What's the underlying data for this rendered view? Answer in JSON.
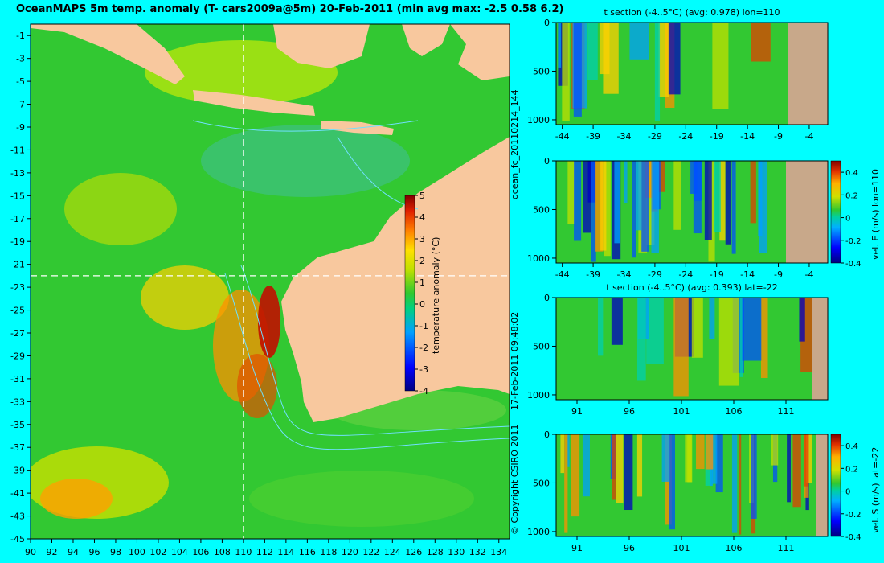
{
  "header": {
    "title": "OceanMAPS 5m temp. anomaly (T- cars2009a@5m) 20-Feb-2011 (min avg max: -2.5 0.58 6.2)"
  },
  "side_labels": {
    "run_id": "ocean_fc_20110214_144",
    "timestamp": "17-Feb-2011 09:48:02",
    "copyright": "© Copyright CSIRO 2011"
  },
  "colors": {
    "background": "#00ffff",
    "land": "#f8c89e",
    "section_land": "#c8a88a",
    "ocean_base": "#32c832",
    "contour": "#70e0ff"
  },
  "chart_data": [
    {
      "id": "map",
      "type": "heatmap",
      "title": "OceanMAPS 5m temp. anomaly (T- cars2009a@5m) 20-Feb-2011 (min avg max: -2.5 0.58 6.2)",
      "xlabel": "",
      "ylabel": "",
      "xlim": [
        90,
        135
      ],
      "ylim": [
        -45,
        0
      ],
      "xticks": [
        90,
        92,
        94,
        96,
        98,
        100,
        102,
        104,
        106,
        108,
        110,
        112,
        114,
        116,
        118,
        120,
        122,
        124,
        126,
        128,
        130,
        132,
        134
      ],
      "yticks": [
        -1,
        -3,
        -5,
        -7,
        -9,
        -11,
        -13,
        -15,
        -17,
        -19,
        -21,
        -23,
        -25,
        -27,
        -29,
        -31,
        -33,
        -35,
        -37,
        -39,
        -41,
        -43,
        -45
      ],
      "crosshair": {
        "lon": 110,
        "lat": -22
      },
      "colorbar": {
        "label": "temperature anomaly (°C)",
        "min": -4,
        "max": 5,
        "ticks": [
          5,
          4,
          3,
          2,
          1,
          0,
          -1,
          -2,
          -3,
          -4
        ]
      }
    },
    {
      "id": "section1",
      "type": "heatmap",
      "title": "t section (-4..5°C) (avg: 0.978) lon=110",
      "xlim": [
        -45,
        -1
      ],
      "ylim": [
        1050,
        0
      ],
      "xticks": [
        -44,
        -39,
        -34,
        -29,
        -24,
        -19,
        -14,
        -9,
        -4
      ],
      "yticks": [
        0,
        500,
        1000
      ]
    },
    {
      "id": "section2",
      "type": "heatmap",
      "title": "",
      "xlim": [
        -45,
        -1
      ],
      "ylim": [
        1050,
        0
      ],
      "xticks": [
        -44,
        -39,
        -34,
        -29,
        -24,
        -19,
        -14,
        -9,
        -4
      ],
      "yticks": [
        0,
        500,
        1000
      ],
      "colorbar": {
        "label": "vel. E (m/s) lon=110",
        "min": -0.4,
        "max": 0.5,
        "ticks": [
          "0.4",
          "0.2",
          "0",
          "-0.2",
          "-0.4"
        ]
      }
    },
    {
      "id": "section3",
      "type": "heatmap",
      "title": "t section (-4..5°C) (avg: 0.393) lat=-22",
      "xlim": [
        89,
        115
      ],
      "ylim": [
        1050,
        0
      ],
      "xticks": [
        91,
        96,
        101,
        106,
        111
      ],
      "yticks": [
        0,
        500,
        1000
      ]
    },
    {
      "id": "section4",
      "type": "heatmap",
      "title": "",
      "xlim": [
        89,
        115
      ],
      "ylim": [
        1050,
        0
      ],
      "xticks": [
        91,
        96,
        101,
        106,
        111
      ],
      "yticks": [
        0,
        500,
        1000
      ],
      "colorbar": {
        "label": "vel. S (m/s) lat=-22",
        "min": -0.4,
        "max": 0.5,
        "ticks": [
          "0.4",
          "0.2",
          "0",
          "-0.2",
          "-0.4"
        ]
      }
    }
  ]
}
